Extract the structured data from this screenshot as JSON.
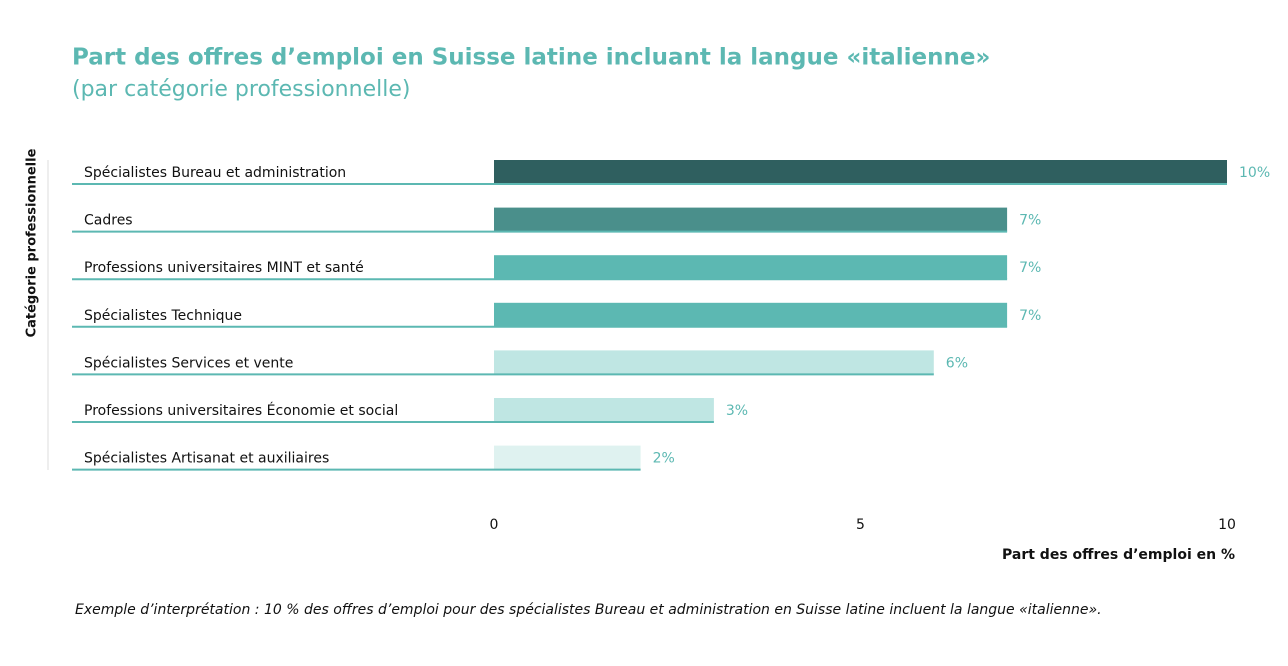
{
  "chart_data": {
    "type": "bar",
    "orientation": "horizontal",
    "title": "Part des offres d’emploi en Suisse latine incluant la langue «italienne»",
    "subtitle": "(par catégorie professionnelle)",
    "y_label": "Catégorie professionnelle",
    "x_label": "Part des offres d’emploi en %",
    "categories": [
      "Spécialistes Bureau et administration",
      "Cadres",
      "Professions universitaires MINT et santé",
      "Spécialistes Technique",
      "Spécialistes Services et vente",
      "Professions universitaires Économie et social",
      "Spécialistes Artisanat et auxiliaires"
    ],
    "values": [
      10,
      7,
      7,
      7,
      6,
      3,
      2
    ],
    "value_labels": [
      "10%",
      "7%",
      "7%",
      "7%",
      "6%",
      "3%",
      "2%"
    ],
    "colors": [
      "#2f5f5f",
      "#4a8f8b",
      "#5cb8b2",
      "#5cb8b2",
      "#bfe6e3",
      "#bfe6e3",
      "#dff2f0"
    ],
    "xlim": [
      0,
      10
    ],
    "xticks": [
      0,
      5,
      10
    ],
    "note": "Exemple d’interprétation : 10 % des offres d’emploi pour des spécialistes Bureau et administration en Suisse latine incluent la langue «italienne»."
  }
}
